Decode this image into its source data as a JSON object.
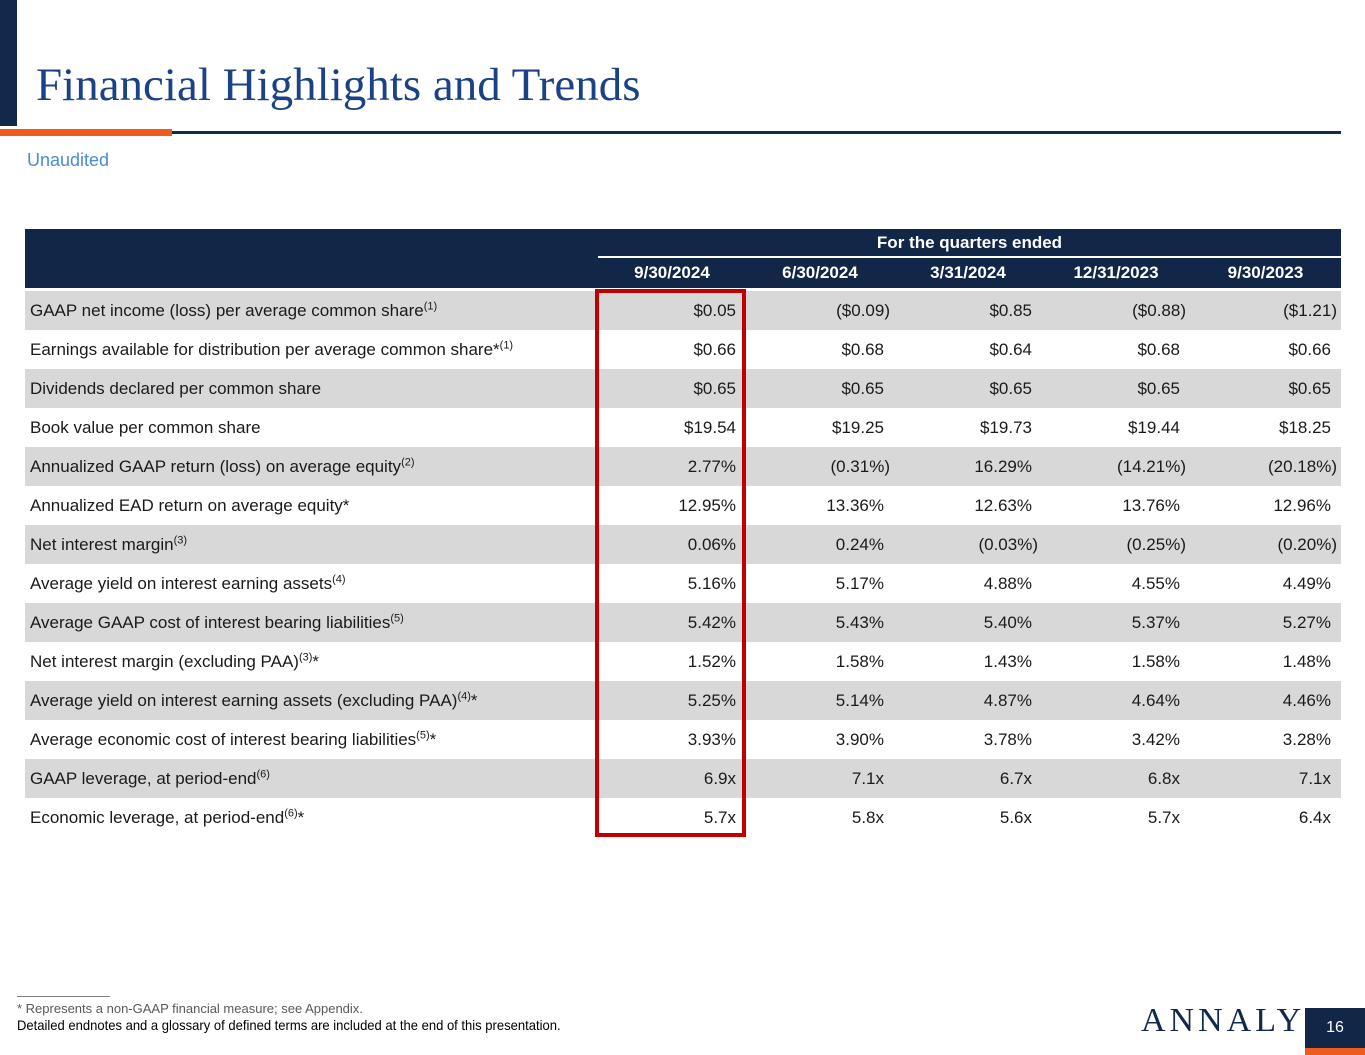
{
  "header": {
    "title": "Financial Highlights and Trends",
    "subtitle": "Unaudited"
  },
  "colors": {
    "navy": "#13294B",
    "orange": "#EF5B1E",
    "row_gray": "#D8D8D8",
    "highlight_red": "#C00000",
    "title_blue": "#1B4287",
    "subtitle_blue": "#4A8BD5"
  },
  "table": {
    "group_header": "For the quarters ended",
    "columns": [
      "9/30/2024",
      "6/30/2024",
      "3/31/2024",
      "12/31/2023",
      "9/30/2023"
    ],
    "highlighted_column": "9/30/2024",
    "rows": [
      {
        "label": [
          {
            "text": "GAAP net income (loss) per average common share"
          },
          {
            "sup": "(1)"
          }
        ],
        "values": [
          "$0.05",
          "($0.09)",
          "$0.85",
          "($0.88)",
          "($1.21)"
        ]
      },
      {
        "label": [
          {
            "text": "Earnings available for distribution per average common share*"
          },
          {
            "sup": "(1)"
          }
        ],
        "values": [
          "$0.66",
          "$0.68",
          "$0.64",
          "$0.68",
          "$0.66"
        ]
      },
      {
        "label": [
          {
            "text": "Dividends declared per common share"
          }
        ],
        "values": [
          "$0.65",
          "$0.65",
          "$0.65",
          "$0.65",
          "$0.65"
        ]
      },
      {
        "label": [
          {
            "text": "Book value per common share"
          }
        ],
        "values": [
          "$19.54",
          "$19.25",
          "$19.73",
          "$19.44",
          "$18.25"
        ]
      },
      {
        "label": [
          {
            "text": "Annualized GAAP return (loss) on average equity"
          },
          {
            "sup": "(2)"
          }
        ],
        "values": [
          "2.77%",
          "(0.31%)",
          "16.29%",
          "(14.21%)",
          "(20.18%)"
        ]
      },
      {
        "label": [
          {
            "text": "Annualized EAD return on average equity*"
          }
        ],
        "values": [
          "12.95%",
          "13.36%",
          "12.63%",
          "13.76%",
          "12.96%"
        ]
      },
      {
        "label": [
          {
            "text": "Net interest margin"
          },
          {
            "sup": "(3)"
          }
        ],
        "values": [
          "0.06%",
          "0.24%",
          "(0.03%)",
          "(0.25%)",
          "(0.20%)"
        ]
      },
      {
        "label": [
          {
            "text": "Average yield on interest earning assets"
          },
          {
            "sup": "(4)"
          }
        ],
        "values": [
          "5.16%",
          "5.17%",
          "4.88%",
          "4.55%",
          "4.49%"
        ]
      },
      {
        "label": [
          {
            "text": "Average GAAP cost of interest bearing liabilities"
          },
          {
            "sup": "(5)"
          }
        ],
        "values": [
          "5.42%",
          "5.43%",
          "5.40%",
          "5.37%",
          "5.27%"
        ]
      },
      {
        "label": [
          {
            "text": "Net interest margin (excluding PAA)"
          },
          {
            "sup": "(3)"
          },
          {
            "text": "*"
          }
        ],
        "values": [
          "1.52%",
          "1.58%",
          "1.43%",
          "1.58%",
          "1.48%"
        ]
      },
      {
        "label": [
          {
            "text": "Average yield on interest earning assets (excluding PAA)"
          },
          {
            "sup": "(4)"
          },
          {
            "text": "*"
          }
        ],
        "values": [
          "5.25%",
          "5.14%",
          "4.87%",
          "4.64%",
          "4.46%"
        ]
      },
      {
        "label": [
          {
            "text": "Average economic cost of interest bearing liabilities"
          },
          {
            "sup": "(5)"
          },
          {
            "text": "*"
          }
        ],
        "values": [
          "3.93%",
          "3.90%",
          "3.78%",
          "3.42%",
          "3.28%"
        ]
      },
      {
        "label": [
          {
            "text": "GAAP leverage, at period-end"
          },
          {
            "sup": "(6)"
          }
        ],
        "values": [
          "6.9x",
          "7.1x",
          "6.7x",
          "6.8x",
          "7.1x"
        ]
      },
      {
        "label": [
          {
            "text": "Economic leverage, at period-end"
          },
          {
            "sup": "(6)"
          },
          {
            "text": "*"
          }
        ],
        "values": [
          "5.7x",
          "5.8x",
          "5.6x",
          "5.7x",
          "6.4x"
        ]
      }
    ]
  },
  "footer": {
    "note1": "* Represents a non-GAAP financial measure; see Appendix.",
    "note2": "Detailed endnotes and a glossary of defined terms are included at the end of this presentation.",
    "logo_text": "ANNALY",
    "logo_reg": "®",
    "page_number": "16"
  }
}
